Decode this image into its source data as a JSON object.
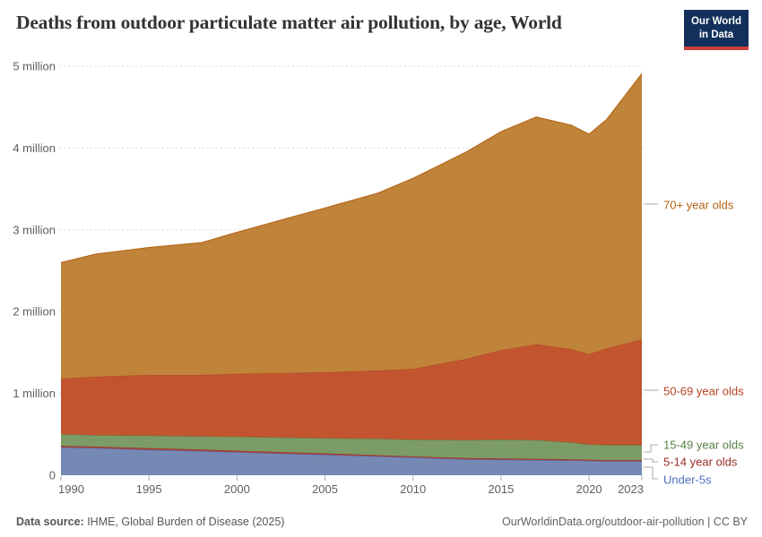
{
  "header": {
    "title": "Deaths from outdoor particulate matter air pollution, by age, World",
    "logo": {
      "line1": "Our World",
      "line2": "in Data"
    }
  },
  "footer": {
    "source_bold": "Data source:",
    "source_rest": " IHME, Global Burden of Disease (2025)",
    "link": "OurWorldinData.org/outdoor-air-pollution",
    "separator": " | ",
    "license": "CC BY"
  },
  "chart_data": {
    "type": "area",
    "stacked": true,
    "title": "Deaths from outdoor particulate matter air pollution, by age, World",
    "xlabel": "",
    "ylabel": "",
    "values_unit": "million deaths",
    "xlim": [
      1990,
      2023
    ],
    "ylim": [
      0,
      5
    ],
    "grid": "horizontal-dashed",
    "legend_position": "right",
    "x": [
      1990,
      1992,
      1995,
      1998,
      2000,
      2003,
      2005,
      2008,
      2010,
      2013,
      2015,
      2017,
      2019,
      2020,
      2021,
      2023
    ],
    "x_ticks": [
      {
        "year": 1990,
        "label": "1990"
      },
      {
        "year": 1995,
        "label": "1995"
      },
      {
        "year": 2000,
        "label": "2000"
      },
      {
        "year": 2005,
        "label": "2005"
      },
      {
        "year": 2010,
        "label": "2010"
      },
      {
        "year": 2015,
        "label": "2015"
      },
      {
        "year": 2020,
        "label": "2020"
      },
      {
        "year": 2023,
        "label": "2023"
      }
    ],
    "y_ticks": [
      {
        "value": 0,
        "label": "0"
      },
      {
        "value": 1,
        "label": "1 million"
      },
      {
        "value": 2,
        "label": "2 million"
      },
      {
        "value": 3,
        "label": "3 million"
      },
      {
        "value": 4,
        "label": "4 million"
      },
      {
        "value": 5,
        "label": "5 million"
      }
    ],
    "series": [
      {
        "name": "Under-5s",
        "fill": "#7589B4",
        "line": "#4C6FC0",
        "values": [
          0.34,
          0.33,
          0.31,
          0.295,
          0.28,
          0.262,
          0.25,
          0.23,
          0.215,
          0.195,
          0.19,
          0.185,
          0.18,
          0.175,
          0.17,
          0.17
        ]
      },
      {
        "name": "5-14 year olds",
        "fill": "#A8453B",
        "line": "#9A2C23",
        "values": [
          0.02,
          0.02,
          0.02,
          0.02,
          0.02,
          0.018,
          0.018,
          0.015,
          0.015,
          0.015,
          0.015,
          0.015,
          0.015,
          0.015,
          0.015,
          0.015
        ]
      },
      {
        "name": "15-49 year olds",
        "fill": "#7C9C67",
        "line": "#578145",
        "values": [
          0.14,
          0.14,
          0.155,
          0.16,
          0.17,
          0.18,
          0.185,
          0.2,
          0.205,
          0.22,
          0.23,
          0.23,
          0.205,
          0.185,
          0.185,
          0.185
        ]
      },
      {
        "name": "50-69 year olds",
        "fill": "#C2552F",
        "line": "#B54023",
        "values": [
          0.68,
          0.715,
          0.74,
          0.75,
          0.77,
          0.79,
          0.805,
          0.835,
          0.865,
          0.99,
          1.095,
          1.17,
          1.14,
          1.105,
          1.18,
          1.29
        ]
      },
      {
        "name": "70+ year olds",
        "fill": "#BF8339",
        "line": "#B16214",
        "values": [
          1.42,
          1.5,
          1.56,
          1.62,
          1.73,
          1.9,
          2.01,
          2.17,
          2.33,
          2.53,
          2.67,
          2.78,
          2.74,
          2.69,
          2.8,
          3.25
        ]
      }
    ]
  }
}
